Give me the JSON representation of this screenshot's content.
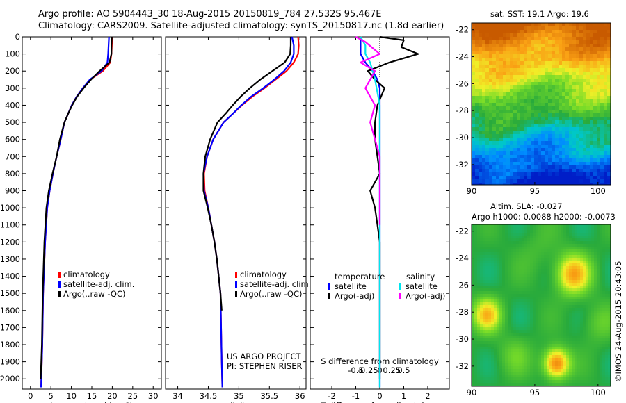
{
  "header": {
    "line1": "Argo profile: AO 5904443_30 18-Aug-2015 20150819_784 27.532S 95.467E",
    "line2": "Climatology: CARS2009. Satellite-adjusted climatology: synTS_20150817.nc (1.8d earlier)"
  },
  "colors": {
    "clim": "#ff0000",
    "sat": "#0000ff",
    "argo": "#000000",
    "sat_s": "#00e5ee",
    "argo_s": "#ff00ff"
  },
  "legend_main": [
    "climatology",
    "satellite-adj. clim.",
    "Argo(..raw -QC)"
  ],
  "diff_legend": {
    "temp_title": "temperature",
    "sal_title": "salinity",
    "temp_items": [
      "satellite",
      "Argo(-adj)"
    ],
    "sal_items": [
      "satellite",
      "Argo(-adj)"
    ]
  },
  "credits": {
    "line1": "US ARGO PROJECT",
    "line2": "PI: STEPHEN RISER"
  },
  "sst_title": "sat. SST: 19.1 Argo: 19.6",
  "sla_title": "Altim. SLA: -0.027",
  "sla_title2": "Argo h1000: 0.0088 h2000: -0.0073",
  "imos_stamp": "©IMOS 24-Aug-2015 20:43:05",
  "chart_data": [
    {
      "type": "line",
      "xlabel": "temperature (deg C)",
      "xlim": [
        -2,
        32
      ],
      "ylim": [
        0,
        2060
      ],
      "xticks": [
        "0",
        "5",
        "10",
        "15",
        "20",
        "25",
        "30"
      ],
      "yticks": [
        "0",
        "100",
        "200",
        "300",
        "400",
        "500",
        "600",
        "700",
        "800",
        "900",
        "1000",
        "1100",
        "1200",
        "1300",
        "1400",
        "1500",
        "1600",
        "1700",
        "1800",
        "1900",
        "2000"
      ],
      "series": [
        {
          "name": "climatology",
          "x": [
            20,
            19.9,
            19.8,
            19.5,
            17.7,
            14.6,
            12.8,
            11.3,
            10.1,
            9.2,
            8.3,
            7.4,
            6.4,
            5.5,
            4.7,
            4.1,
            3.6,
            3.1,
            2.9,
            2.6
          ],
          "y": [
            0,
            50,
            100,
            150,
            200,
            250,
            300,
            350,
            400,
            450,
            500,
            600,
            700,
            800,
            900,
            1000,
            1200,
            1500,
            1800,
            2050
          ]
        },
        {
          "name": "satellite-adj. clim.",
          "x": [
            19.2,
            19.1,
            19,
            18.8,
            17.4,
            14.5,
            12.8,
            11.3,
            10.1,
            9.2,
            8.3,
            7.4,
            6.4,
            5.5,
            4.7,
            4.1,
            3.6,
            3.1,
            2.9,
            2.6
          ],
          "y": [
            0,
            50,
            100,
            150,
            200,
            250,
            300,
            350,
            400,
            450,
            500,
            600,
            700,
            800,
            900,
            1000,
            1200,
            1500,
            1800,
            2050
          ]
        },
        {
          "name": "Argo(..raw -QC)",
          "x": [
            19.9,
            19.8,
            19.8,
            19.3,
            16.9,
            14.8,
            13,
            11.4,
            10.2,
            9.2,
            8.3,
            7.2,
            6.4,
            5.4,
            4.5,
            3.9,
            3.4,
            3,
            2.8,
            2.5
          ],
          "y": [
            0,
            50,
            100,
            150,
            200,
            250,
            300,
            350,
            400,
            450,
            500,
            600,
            700,
            800,
            900,
            1000,
            1200,
            1500,
            1800,
            2000
          ]
        }
      ]
    },
    {
      "type": "line",
      "xlabel": "salinity",
      "xlim": [
        33.8,
        36.1
      ],
      "ylim": [
        0,
        2060
      ],
      "xticks": [
        "34",
        "34.5",
        "35",
        "35.5",
        "36"
      ],
      "series": [
        {
          "name": "climatology",
          "x": [
            35.97,
            35.98,
            35.97,
            35.9,
            35.78,
            35.6,
            35.42,
            35.22,
            35.05,
            34.9,
            34.75,
            34.58,
            34.48,
            34.43,
            34.44,
            34.5,
            34.55,
            34.6,
            34.64,
            34.67,
            34.7,
            34.71,
            34.72,
            34.73
          ],
          "y": [
            0,
            50,
            100,
            150,
            200,
            250,
            300,
            350,
            400,
            450,
            500,
            600,
            700,
            800,
            900,
            1000,
            1100,
            1200,
            1300,
            1400,
            1500,
            1700,
            1900,
            2050
          ]
        },
        {
          "name": "satellite-adj. clim.",
          "x": [
            35.87,
            35.9,
            35.9,
            35.85,
            35.74,
            35.58,
            35.4,
            35.2,
            35.04,
            34.9,
            34.75,
            34.58,
            34.48,
            34.42,
            34.43,
            34.5,
            34.55,
            34.6,
            34.64,
            34.67,
            34.7,
            34.71,
            34.72,
            34.73
          ],
          "y": [
            0,
            50,
            100,
            150,
            200,
            250,
            300,
            350,
            400,
            450,
            500,
            600,
            700,
            800,
            900,
            1000,
            1100,
            1200,
            1300,
            1400,
            1500,
            1700,
            1900,
            2050
          ]
        },
        {
          "name": "Argo(..raw -QC)",
          "x": [
            35.85,
            35.85,
            35.84,
            35.75,
            35.55,
            35.35,
            35.18,
            35.03,
            34.9,
            34.78,
            34.65,
            34.53,
            34.45,
            34.42,
            34.42,
            34.49,
            34.55,
            34.6,
            34.64,
            34.67,
            34.7,
            34.72
          ],
          "y": [
            0,
            50,
            100,
            150,
            200,
            250,
            300,
            350,
            400,
            450,
            500,
            600,
            700,
            800,
            900,
            1000,
            1100,
            1200,
            1300,
            1400,
            1500,
            1600
          ]
        }
      ]
    },
    {
      "type": "line",
      "xlabel": "T difference from climatology",
      "xlabel_top": "S difference from climatology",
      "xlim": [
        -2.9,
        2.9
      ],
      "ylim": [
        0,
        2060
      ],
      "xticks": [
        "-2",
        "-1",
        "0",
        "1",
        "2"
      ],
      "xticks_top": [
        "-0.5",
        "-0.25",
        "0",
        "0.25",
        "0.5"
      ],
      "series": [
        {
          "name": "temperature satellite",
          "x": [
            -0.8,
            -0.8,
            -0.8,
            -0.6,
            -0.3,
            -0.1,
            0,
            0,
            0,
            0,
            0,
            0,
            0
          ],
          "y": [
            0,
            50,
            100,
            150,
            200,
            250,
            300,
            400,
            600,
            1000,
            1400,
            1800,
            2050
          ]
        },
        {
          "name": "temperature Argo(-adj)",
          "x": [
            0,
            1,
            0.9,
            1.6,
            0.4,
            -0.5,
            -0.2,
            0.2,
            -0.1,
            -0.2,
            -0.2,
            -0.1,
            0,
            -0.4,
            -0.2,
            -0.1,
            0,
            0,
            0,
            0,
            0,
            0
          ],
          "y": [
            0,
            20,
            60,
            100,
            150,
            200,
            250,
            300,
            400,
            500,
            600,
            700,
            800,
            900,
            1000,
            1100,
            1200,
            1300,
            1500,
            1700,
            1900,
            2000
          ]
        },
        {
          "name": "salinity satellite",
          "x": [
            -0.4,
            -0.3,
            -0.3,
            -0.2,
            -0.1,
            0,
            0,
            0,
            0,
            0,
            0
          ],
          "y": [
            0,
            50,
            100,
            150,
            250,
            400,
            600,
            900,
            1300,
            1700,
            2050
          ]
        },
        {
          "name": "salinity Argo(-adj)",
          "x": [
            -0.5,
            -0.3,
            0,
            -0.4,
            -0.1,
            -0.3,
            -0.1,
            -0.2,
            -0.1,
            0,
            0,
            0,
            0,
            0
          ],
          "y": [
            0,
            30,
            100,
            150,
            200,
            300,
            400,
            500,
            600,
            700,
            800,
            900,
            1000,
            1100
          ]
        }
      ]
    },
    {
      "type": "heatmap",
      "title": "sat. SST: 19.1 Argo: 19.6",
      "xlim": [
        90,
        101
      ],
      "ylim": [
        -33.5,
        -21.5
      ],
      "xticks": [
        "90",
        "95",
        "100"
      ],
      "yticks": [
        "-22",
        "-24",
        "-26",
        "-28",
        "-30",
        "-32"
      ]
    },
    {
      "type": "heatmap",
      "title": "Altim. SLA: -0.027",
      "xlim": [
        90,
        101
      ],
      "ylim": [
        -33.5,
        -21.5
      ],
      "xticks": [
        "90",
        "95",
        "100"
      ],
      "yticks": [
        "-22",
        "-24",
        "-26",
        "-28",
        "-30",
        "-32"
      ]
    }
  ]
}
